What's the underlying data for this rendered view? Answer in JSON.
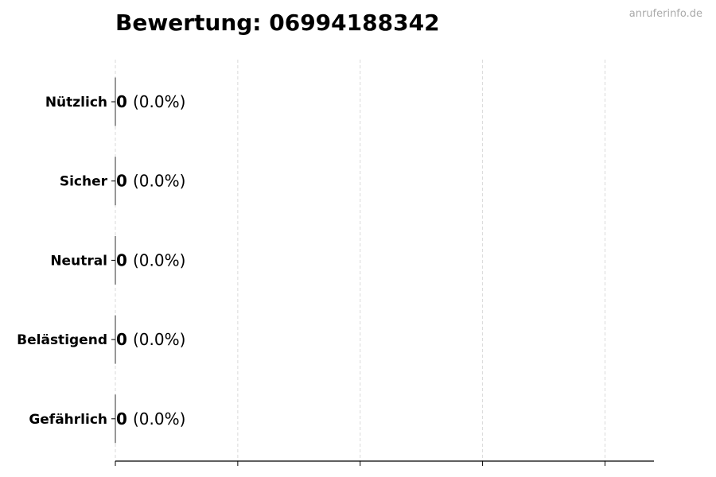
{
  "chart_data": {
    "type": "bar",
    "orientation": "horizontal",
    "title": "Bewertung: 06994188342",
    "watermark": "anruferinfo.de",
    "categories": [
      "Nützlich",
      "Sicher",
      "Neutral",
      "Belästigend",
      "Gefährlich"
    ],
    "values": [
      0,
      0,
      0,
      0,
      0
    ],
    "value_labels": [
      "0",
      "0",
      "0",
      "0",
      "0"
    ],
    "percent_labels": [
      "(0.0%)",
      "(0.0%)",
      "(0.0%)",
      "(0.0%)",
      "(0.0%)"
    ],
    "xlabel": "",
    "ylabel": "",
    "xlim": [
      0,
      4.4
    ],
    "xticks": [
      0,
      1,
      2,
      3,
      4
    ],
    "xtick_labels_shown": false,
    "grid": "x-dashed",
    "colors": {
      "grid": "#d9d9d9",
      "axis": "#000000",
      "bar_edge": "#333333",
      "watermark": "#aaaaaa"
    }
  }
}
